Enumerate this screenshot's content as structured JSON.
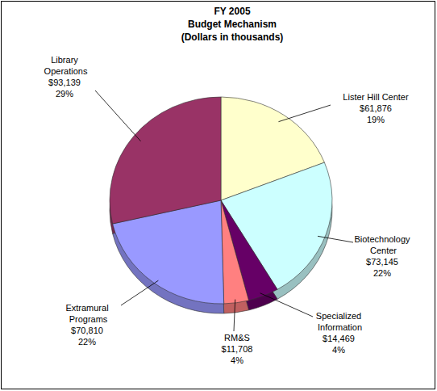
{
  "chart_data": {
    "type": "pie",
    "title": [
      "FY 2005",
      "Budget Mechanism",
      "(Dollars in thousands)"
    ],
    "categories": [
      "Lister Hill Center",
      "Biotechnology Center",
      "Specialized Information",
      "RM&S",
      "Extramural Programs",
      "Library Operations"
    ],
    "values": [
      61876,
      73145,
      14469,
      11708,
      70810,
      93139
    ],
    "value_labels": [
      "$61,876",
      "$73,145",
      "$14,469",
      "$11,708",
      "$70,810",
      "$93,139"
    ],
    "percents": [
      19,
      22,
      4,
      4,
      22,
      29
    ],
    "percent_labels": [
      "19%",
      "22%",
      "4%",
      "4%",
      "22%",
      "29%"
    ],
    "colors": [
      "#ffffcc",
      "#ccffff",
      "#660066",
      "#ff8080",
      "#9999ff",
      "#993366"
    ],
    "data_labels": true
  }
}
